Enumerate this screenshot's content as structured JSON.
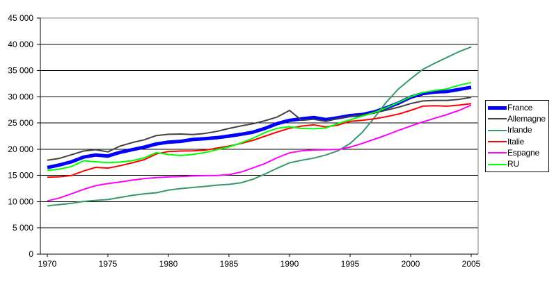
{
  "chart_data": {
    "type": "line",
    "title": "",
    "xlabel": "",
    "ylabel": "",
    "ylim": [
      0,
      45000
    ],
    "ytick_step": 5000,
    "grid": true,
    "legend_position": "right",
    "x": [
      1970,
      1971,
      1972,
      1973,
      1974,
      1975,
      1976,
      1977,
      1978,
      1979,
      1980,
      1981,
      1982,
      1983,
      1984,
      1985,
      1986,
      1987,
      1988,
      1989,
      1990,
      1991,
      1992,
      1993,
      1994,
      1995,
      1996,
      1997,
      1998,
      1999,
      2000,
      2001,
      2002,
      2003,
      2004,
      2005
    ],
    "xticks": [
      1970,
      1975,
      1980,
      1985,
      1990,
      1995,
      2000,
      2005
    ],
    "xtick_labels": [
      "1970",
      "1975",
      "1980",
      "1985",
      "1990",
      "1995",
      "2000",
      "2005"
    ],
    "ytick_values": [
      0,
      5000,
      10000,
      15000,
      20000,
      25000,
      30000,
      35000,
      40000,
      45000
    ],
    "ytick_labels": [
      "0",
      "5 000",
      "10 000",
      "15 000",
      "20 000",
      "25 000",
      "30 000",
      "35 000",
      "40 000",
      "45 000"
    ],
    "series": [
      {
        "name": "France",
        "color": "#0000ff",
        "line_width": 5,
        "values": [
          16500,
          17000,
          17600,
          18500,
          18900,
          18700,
          19400,
          19900,
          20400,
          21000,
          21350,
          21500,
          21850,
          22000,
          22200,
          22500,
          22850,
          23250,
          24000,
          24900,
          25500,
          25800,
          26050,
          25650,
          26000,
          26400,
          26600,
          27100,
          27900,
          28800,
          29900,
          30600,
          30900,
          31000,
          31400,
          31800
        ]
      },
      {
        "name": "Allemagne",
        "color": "#404040",
        "line_width": 2,
        "values": [
          17900,
          18250,
          18950,
          19650,
          19900,
          19500,
          20600,
          21250,
          21800,
          22600,
          22850,
          22900,
          22800,
          23000,
          23400,
          23950,
          24450,
          24850,
          25450,
          26150,
          27400,
          25500,
          25700,
          25300,
          25850,
          26250,
          26500,
          26900,
          27450,
          28000,
          28700,
          29200,
          29300,
          29300,
          29500,
          29900
        ]
      },
      {
        "name": "Irlande",
        "color": "#339966",
        "line_width": 2,
        "values": [
          9200,
          9450,
          9700,
          10050,
          10250,
          10400,
          10800,
          11200,
          11500,
          11700,
          12200,
          12500,
          12700,
          12900,
          13150,
          13300,
          13600,
          14300,
          15300,
          16400,
          17400,
          17900,
          18300,
          18900,
          19700,
          21100,
          23200,
          26000,
          29000,
          31500,
          33400,
          35200,
          36400,
          37500,
          38600,
          39500
        ]
      },
      {
        "name": "Italie",
        "color": "#ff0000",
        "line_width": 2,
        "values": [
          14650,
          14750,
          15000,
          15850,
          16550,
          16400,
          16850,
          17400,
          18000,
          19100,
          19550,
          19650,
          19700,
          19800,
          20200,
          20600,
          21100,
          21700,
          22500,
          23300,
          24000,
          24400,
          24650,
          24250,
          24600,
          25300,
          25500,
          25800,
          26200,
          26700,
          27400,
          28200,
          28300,
          28200,
          28400,
          28700
        ]
      },
      {
        "name": "Espagne",
        "color": "#ff00ff",
        "line_width": 2,
        "values": [
          10150,
          10700,
          11500,
          12350,
          13050,
          13450,
          13750,
          14100,
          14400,
          14600,
          14700,
          14800,
          14900,
          14950,
          15000,
          15150,
          15650,
          16450,
          17300,
          18400,
          19300,
          19700,
          19850,
          19900,
          19950,
          20400,
          21100,
          21900,
          22700,
          23600,
          24400,
          25200,
          25900,
          26600,
          27400,
          28400
        ]
      },
      {
        "name": "RU",
        "color": "#00ff00",
        "line_width": 2,
        "values": [
          15950,
          16200,
          16700,
          17800,
          17600,
          17450,
          17550,
          17800,
          18350,
          19350,
          19000,
          18800,
          19000,
          19350,
          19900,
          20450,
          21200,
          22100,
          23200,
          24000,
          24300,
          23950,
          23900,
          24050,
          24900,
          25600,
          26300,
          27000,
          27900,
          28900,
          30000,
          30800,
          31200,
          31500,
          32200,
          32700
        ]
      }
    ],
    "colors": {
      "axis": "#000000",
      "gridline": "#000000",
      "plot_border": "#808080",
      "background": "#ffffff",
      "tick_text": "#000000"
    }
  }
}
